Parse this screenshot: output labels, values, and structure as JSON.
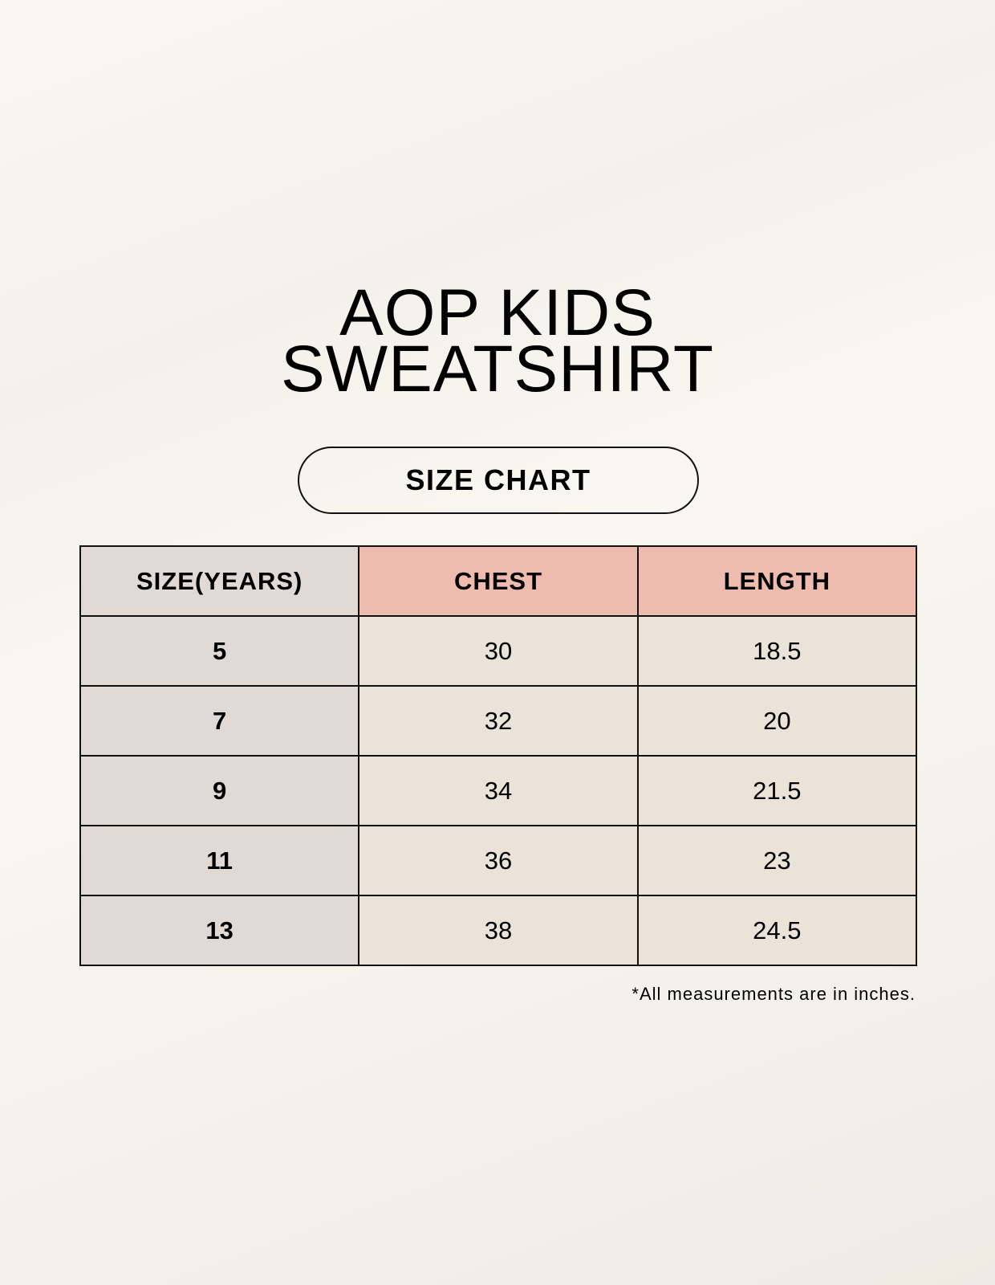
{
  "title": {
    "line1": "AOP KIDS",
    "line2": "SWEATSHIRT"
  },
  "badge": "SIZE CHART",
  "table": {
    "headers": [
      "SIZE(YEARS)",
      "CHEST",
      "LENGTH"
    ],
    "rows": [
      [
        "5",
        "30",
        "18.5"
      ],
      [
        "7",
        "32",
        "20"
      ],
      [
        "9",
        "34",
        "21.5"
      ],
      [
        "11",
        "36",
        "23"
      ],
      [
        "13",
        "38",
        "24.5"
      ]
    ]
  },
  "footnote": "*All measurements are in inches.",
  "colors": {
    "size_column": "#e0d9d4",
    "header_accent": "#eebcae",
    "cell": "#ebe2d8"
  }
}
